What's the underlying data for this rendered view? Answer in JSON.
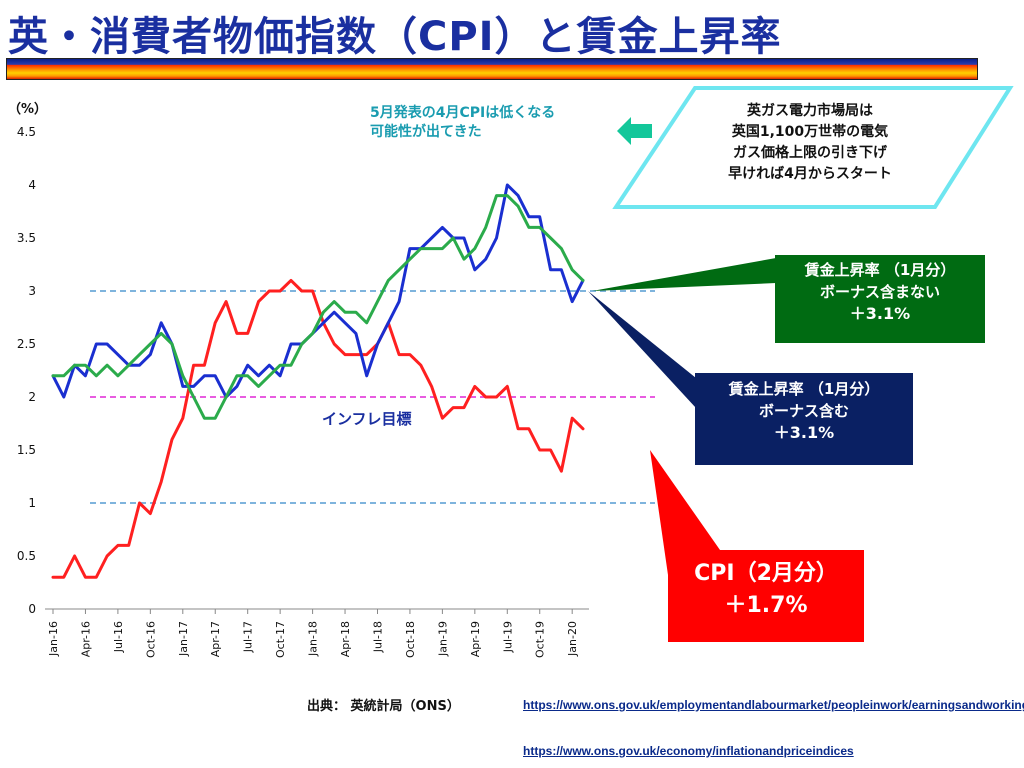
{
  "title": "英・消費者物価指数（CPI）と賃金上昇率",
  "chart_data": {
    "type": "line",
    "ylabel": "（%）",
    "ylim": [
      0,
      4.5
    ],
    "yticks": [
      "0",
      "0.5",
      "1",
      "1.5",
      "2",
      "2.5",
      "3",
      "3.5",
      "4",
      "4.5"
    ],
    "x": [
      "2016-01",
      "2016-02",
      "2016-03",
      "2016-04",
      "2016-05",
      "2016-06",
      "2016-07",
      "2016-08",
      "2016-09",
      "2016-10",
      "2016-11",
      "2016-12",
      "2017-01",
      "2017-02",
      "2017-03",
      "2017-04",
      "2017-05",
      "2017-06",
      "2017-07",
      "2017-08",
      "2017-09",
      "2017-10",
      "2017-11",
      "2017-12",
      "2018-01",
      "2018-02",
      "2018-03",
      "2018-04",
      "2018-05",
      "2018-06",
      "2018-07",
      "2018-08",
      "2018-09",
      "2018-10",
      "2018-11",
      "2018-12",
      "2019-01",
      "2019-02",
      "2019-03",
      "2019-04",
      "2019-05",
      "2019-06",
      "2019-07",
      "2019-08",
      "2019-09",
      "2019-10",
      "2019-11",
      "2019-12",
      "2020-01",
      "2020-02"
    ],
    "xticks": [
      "Jan-16",
      "Apr-16",
      "Jul-16",
      "Oct-16",
      "Jan-17",
      "Apr-17",
      "Jul-17",
      "Oct-17",
      "Jan-18",
      "Apr-18",
      "Jul-18",
      "Oct-18",
      "Jan-19",
      "Apr-19",
      "Jul-19",
      "Oct-19",
      "Jan-20"
    ],
    "series": [
      {
        "key": "cpi",
        "color": "#ff2020",
        "values": [
          0.3,
          0.3,
          0.5,
          0.3,
          0.3,
          0.5,
          0.6,
          0.6,
          1.0,
          0.9,
          1.2,
          1.6,
          1.8,
          2.3,
          2.3,
          2.7,
          2.9,
          2.6,
          2.6,
          2.9,
          3.0,
          3.0,
          3.1,
          3.0,
          3.0,
          2.7,
          2.5,
          2.4,
          2.4,
          2.4,
          2.5,
          2.7,
          2.4,
          2.4,
          2.3,
          2.1,
          1.8,
          1.9,
          1.9,
          2.1,
          2.0,
          2.0,
          2.1,
          1.7,
          1.7,
          1.5,
          1.5,
          1.3,
          1.8,
          1.7
        ]
      },
      {
        "key": "wage_incl_bonus",
        "color": "#1a2fd0",
        "values": [
          2.2,
          2.0,
          2.3,
          2.2,
          2.5,
          2.5,
          2.4,
          2.3,
          2.3,
          2.4,
          2.7,
          2.5,
          2.1,
          2.1,
          2.2,
          2.2,
          2.0,
          2.1,
          2.3,
          2.2,
          2.3,
          2.2,
          2.5,
          2.5,
          2.6,
          2.7,
          2.8,
          2.7,
          2.6,
          2.2,
          2.5,
          2.7,
          2.9,
          3.4,
          3.4,
          3.5,
          3.6,
          3.5,
          3.5,
          3.2,
          3.3,
          3.5,
          4.0,
          3.9,
          3.7,
          3.7,
          3.2,
          3.2,
          2.9,
          3.1
        ]
      },
      {
        "key": "wage_excl_bonus",
        "color": "#2bab4b",
        "values": [
          2.2,
          2.2,
          2.3,
          2.3,
          2.2,
          2.3,
          2.2,
          2.3,
          2.4,
          2.5,
          2.6,
          2.5,
          2.2,
          2.0,
          1.8,
          1.8,
          2.0,
          2.2,
          2.2,
          2.1,
          2.2,
          2.3,
          2.3,
          2.5,
          2.6,
          2.8,
          2.9,
          2.8,
          2.8,
          2.7,
          2.9,
          3.1,
          3.2,
          3.3,
          3.4,
          3.4,
          3.4,
          3.5,
          3.3,
          3.4,
          3.6,
          3.9,
          3.9,
          3.8,
          3.6,
          3.6,
          3.5,
          3.4,
          3.2,
          3.1
        ]
      }
    ],
    "reference_lines": [
      {
        "y": 3.0,
        "color": "#7fb4dd"
      },
      {
        "y": 2.0,
        "color": "#e85ce0"
      },
      {
        "y": 1.0,
        "color": "#7fb4dd"
      }
    ],
    "target_label": "インフレ目標"
  },
  "annotations": {
    "note_line1": "5月発表の4月CPIは低くなる",
    "note_line2": "可能性が出てきた",
    "ofgem": [
      "英ガス電力市場局は",
      "英国1,100万世帯の電気",
      "ガス価格上限の引き下げ",
      "早ければ4月からスタート"
    ],
    "wage_excl": {
      "line1": "賃金上昇率 （1月分）",
      "line2": "ボーナス含まない",
      "value": "＋3.1%",
      "color": "#006b12"
    },
    "wage_incl": {
      "line1": "賃金上昇率 （1月分）",
      "line2": "ボーナス含む",
      "value": "＋3.1%",
      "color": "#0a2063"
    },
    "cpi": {
      "line1": "CPI（2月分）",
      "value": "＋1.7%",
      "color": "#ff0000"
    }
  },
  "source": "出典： 英統計局（ONS）",
  "urls": [
    "https://www.ons.gov.uk/employmentandlabourmarket/peopleinwork/earningsandworkinghours",
    "https://www.ons.gov.uk/economy/inflationandpriceindices"
  ]
}
